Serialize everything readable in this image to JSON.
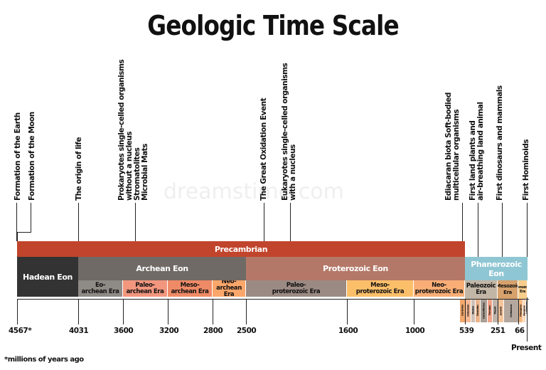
{
  "title": "Geologic Time Scale",
  "events": [
    {
      "label": "Formation of the Earth"
    },
    {
      "label": "Formation of the Moon"
    },
    {
      "label": "The origin of life"
    },
    {
      "label": "Prokaryotes single-celled organisms\nwithout a nucleus\nStromatolites\nMicrobial Mats"
    },
    {
      "label": "The Great Oxidation Event"
    },
    {
      "label": "Eukaryotes single-celled organisms\nwith a nucleus"
    },
    {
      "label": "Ediacaran biota Soft-bodied\nmulticellular organisms"
    },
    {
      "label": "First land plants and\nair-breathing land animal"
    },
    {
      "label": "First dinosaurs and mammals"
    },
    {
      "label": "First Hominoids"
    }
  ],
  "supereon": {
    "label": "Precambrian",
    "color": "#c1452c"
  },
  "eons": [
    {
      "label": "Hadean Eon",
      "color": "#333333"
    },
    {
      "label": "Archean Eon",
      "color": "#6f6a66"
    },
    {
      "label": "Proterozoic Eon",
      "color": "#b47868"
    },
    {
      "label": "Phanerozoic Eon",
      "color": "#8fc6d3"
    }
  ],
  "eras": [
    {
      "label": "Eo-\narchean Era",
      "color": "#8e8a86"
    },
    {
      "label": "Paleo-\narchean Era",
      "color": "#f2967e"
    },
    {
      "label": "Meso-\narchean Era",
      "color": "#ef8a66"
    },
    {
      "label": "Neo-\narchean Era",
      "color": "#fba76b"
    },
    {
      "label": "Paleo-\nproterozoic Era",
      "color": "#9b8a83"
    },
    {
      "label": "Meso-\nproterozoic Era",
      "color": "#fbbf6a"
    },
    {
      "label": "Neo-\nproterozoic Era",
      "color": "#f9ae76"
    },
    {
      "label": "Paleozoic\nEra",
      "color": "#c2b6a6"
    },
    {
      "label": "Mesozoic\nEra",
      "color": "#d7a16c"
    },
    {
      "label": "Cenozoic\nEra",
      "color": "#f8cd8c"
    }
  ],
  "periods": [
    {
      "label": "Cambrian",
      "color": "#f2a86c"
    },
    {
      "label": "Ordovician",
      "color": "#f7b994"
    },
    {
      "label": "Silurian",
      "color": "#cfc1b6"
    },
    {
      "label": "Devonian",
      "color": "#e9b38c"
    },
    {
      "label": "Carboniferous",
      "color": "#a99e94"
    },
    {
      "label": "Permian",
      "color": "#f1a287"
    },
    {
      "label": "Triassic",
      "color": "#c0b4aa"
    },
    {
      "label": "Jurassic",
      "color": "#f6c49a"
    },
    {
      "label": "Cretaceous",
      "color": "#b3a79e"
    },
    {
      "label": "Paleogene",
      "color": "#f6b77e"
    },
    {
      "label": "Neogene",
      "color": "#fbd5b3"
    },
    {
      "label": "Quaternary",
      "color": "#ffe7cf"
    }
  ],
  "ticks": [
    {
      "label": "4567*"
    },
    {
      "label": "4031"
    },
    {
      "label": "3600"
    },
    {
      "label": "3200"
    },
    {
      "label": "2800"
    },
    {
      "label": "2500"
    },
    {
      "label": "1600"
    },
    {
      "label": "1000"
    },
    {
      "label": "539"
    },
    {
      "label": "251"
    },
    {
      "label": "66"
    }
  ],
  "present_label": "Present",
  "footnote": "*millions of years ago",
  "watermark": "dreamstime.com"
}
